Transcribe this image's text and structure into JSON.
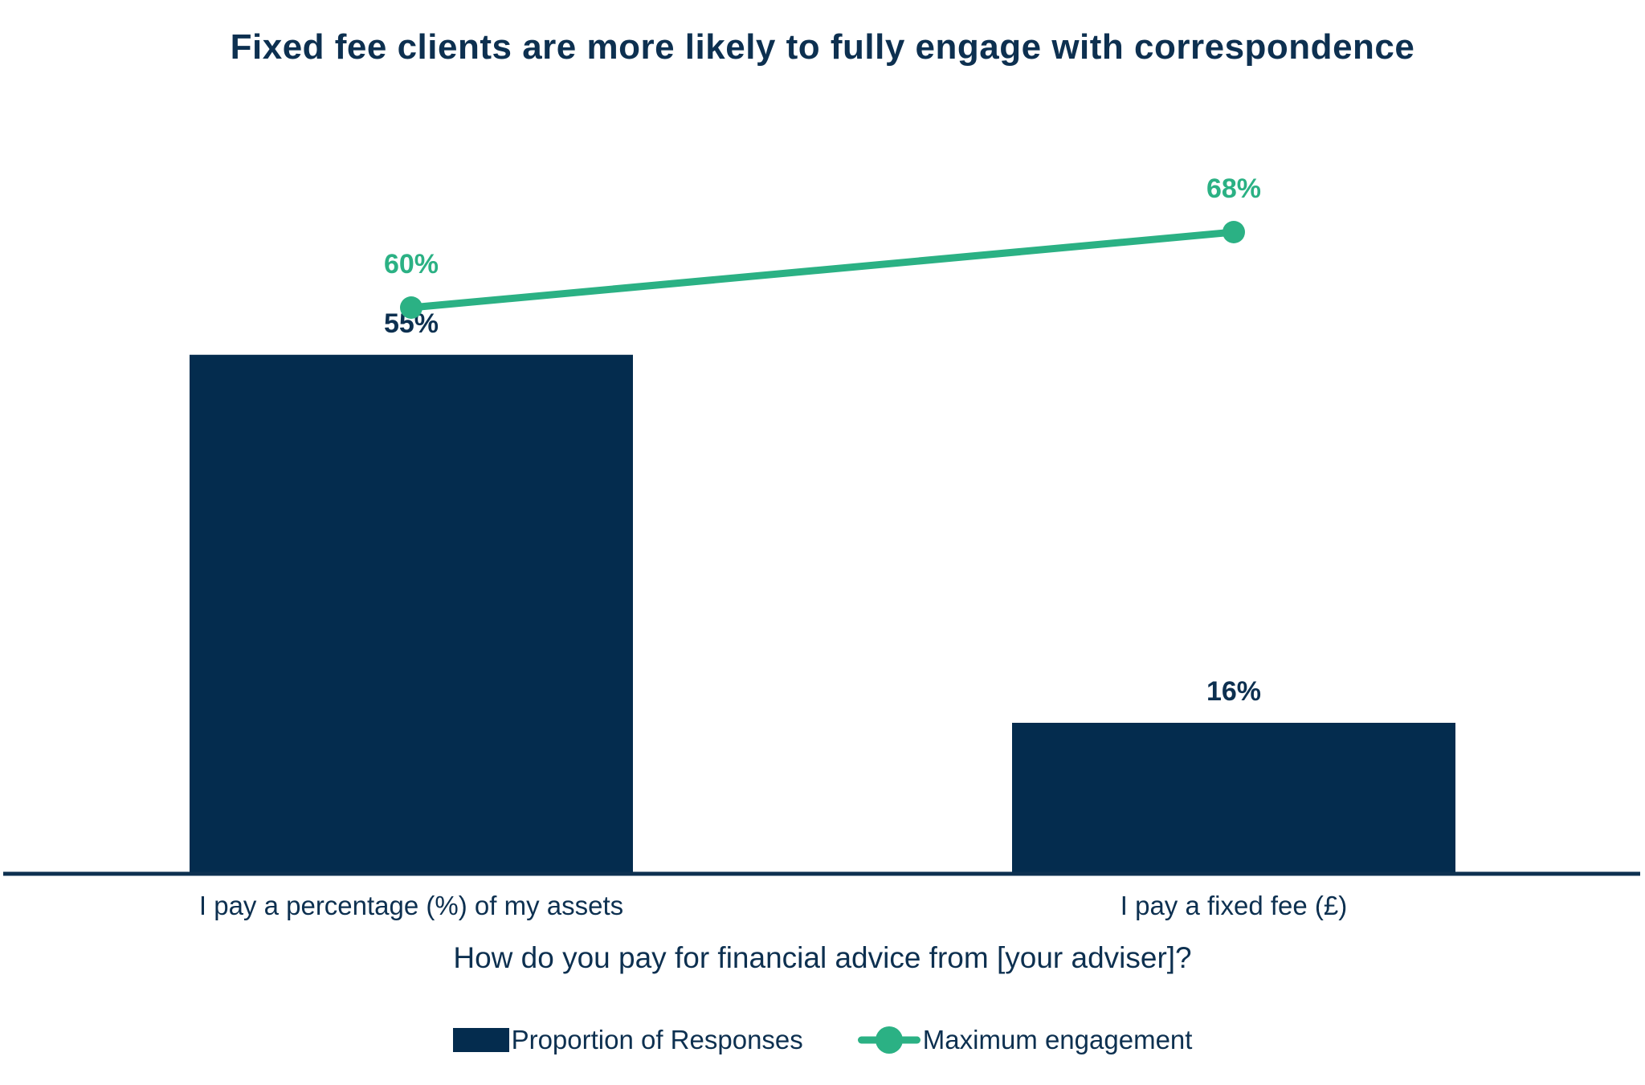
{
  "colors": {
    "background": "#ffffff",
    "navy_text": "#0d3050",
    "bar_navy": "#042c4e",
    "green": "#2bb184",
    "axis_line": "#0d3050"
  },
  "chart_data": {
    "type": "combo_bar_line",
    "title": "Fixed fee clients are more likely to fully engage with correspondence",
    "categories": [
      "I pay a percentage (%) of my assets",
      "I pay a fixed fee (£)"
    ],
    "series": [
      {
        "name": "Proportion of Responses",
        "type": "bar",
        "color": "#042c4e",
        "values": [
          55,
          16
        ],
        "data_labels": [
          "55%",
          "16%"
        ]
      },
      {
        "name": "Maximum engagement",
        "type": "line",
        "color": "#2bb184",
        "values": [
          60,
          68
        ],
        "data_labels": [
          "60%",
          "68%"
        ]
      }
    ],
    "xlabel": "How do you pay for financial advice from [your adviser]?",
    "ylabel": "",
    "ylim": [
      0,
      80
    ],
    "grid": false,
    "y_axis_labels_visible": false,
    "legend_position": "bottom"
  },
  "legend": {
    "items": [
      {
        "label": "Proportion of Responses",
        "marker": "rect"
      },
      {
        "label": "Maximum engagement",
        "marker": "line-dot"
      }
    ]
  }
}
